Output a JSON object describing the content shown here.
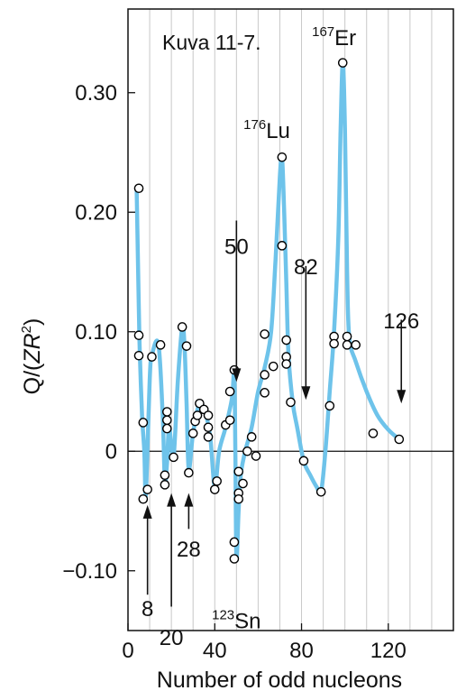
{
  "chart_data": {
    "type": "scatter",
    "title": "",
    "caption": "Kuva 11-7.",
    "xlabel": "Number of odd nucleons",
    "ylabel": "Q/(ZR²)",
    "ylabel_parts": {
      "pre": "Q/(",
      "main": "ZR",
      "sup": "2",
      "post": ")"
    },
    "xlim": [
      0,
      150
    ],
    "ylim": [
      -0.15,
      0.37
    ],
    "xticks": [
      0,
      40,
      80,
      120
    ],
    "xtick_labels": [
      "0",
      "40",
      "80",
      "120"
    ],
    "yticks": [
      -0.1,
      0,
      0.1,
      0.2,
      0.3
    ],
    "ytick_labels": [
      "−0.10",
      "0",
      "0.10",
      "0.20",
      "0.30"
    ],
    "grid": {
      "vertical_every": 10,
      "horizontal": false,
      "zero_line": true
    },
    "colors": {
      "curve": "#6ec3ea",
      "points": "#000000",
      "grid": "#c8c8c8"
    },
    "points": [
      {
        "x": 5,
        "y": 0.22
      },
      {
        "x": 5,
        "y": 0.097
      },
      {
        "x": 5,
        "y": 0.08
      },
      {
        "x": 7,
        "y": 0.024
      },
      {
        "x": 7,
        "y": -0.04
      },
      {
        "x": 9,
        "y": -0.032
      },
      {
        "x": 11,
        "y": 0.079
      },
      {
        "x": 15,
        "y": 0.089
      },
      {
        "x": 17,
        "y": -0.02
      },
      {
        "x": 17,
        "y": -0.028
      },
      {
        "x": 18,
        "y": 0.033
      },
      {
        "x": 18,
        "y": 0.026
      },
      {
        "x": 18,
        "y": 0.019
      },
      {
        "x": 21,
        "y": -0.005
      },
      {
        "x": 25,
        "y": 0.104
      },
      {
        "x": 27,
        "y": 0.088
      },
      {
        "x": 28,
        "y": -0.018
      },
      {
        "x": 30,
        "y": 0.015
      },
      {
        "x": 31,
        "y": 0.025
      },
      {
        "x": 32,
        "y": 0.03
      },
      {
        "x": 33,
        "y": 0.04
      },
      {
        "x": 35,
        "y": 0.035
      },
      {
        "x": 37,
        "y": 0.012
      },
      {
        "x": 37,
        "y": 0.02
      },
      {
        "x": 37,
        "y": 0.03
      },
      {
        "x": 40,
        "y": -0.032
      },
      {
        "x": 41,
        "y": -0.025
      },
      {
        "x": 45,
        "y": 0.022
      },
      {
        "x": 47,
        "y": 0.026
      },
      {
        "x": 47,
        "y": 0.05
      },
      {
        "x": 49,
        "y": 0.068
      },
      {
        "x": 49,
        "y": -0.076
      },
      {
        "x": 49,
        "y": -0.09
      },
      {
        "x": 51,
        "y": -0.035
      },
      {
        "x": 51,
        "y": -0.04
      },
      {
        "x": 51,
        "y": -0.017
      },
      {
        "x": 53,
        "y": -0.027
      },
      {
        "x": 55,
        "y": 0.0
      },
      {
        "x": 57,
        "y": 0.012
      },
      {
        "x": 59,
        "y": -0.004
      },
      {
        "x": 63,
        "y": 0.098
      },
      {
        "x": 63,
        "y": 0.064
      },
      {
        "x": 63,
        "y": 0.049
      },
      {
        "x": 67,
        "y": 0.071
      },
      {
        "x": 71,
        "y": 0.246
      },
      {
        "x": 71,
        "y": 0.172
      },
      {
        "x": 73,
        "y": 0.093
      },
      {
        "x": 73,
        "y": 0.079
      },
      {
        "x": 73,
        "y": 0.073
      },
      {
        "x": 75,
        "y": 0.041
      },
      {
        "x": 81,
        "y": -0.008
      },
      {
        "x": 89,
        "y": -0.034
      },
      {
        "x": 93,
        "y": 0.038
      },
      {
        "x": 95,
        "y": 0.096
      },
      {
        "x": 95,
        "y": 0.09
      },
      {
        "x": 99,
        "y": 0.325
      },
      {
        "x": 101,
        "y": 0.096
      },
      {
        "x": 101,
        "y": 0.089
      },
      {
        "x": 105,
        "y": 0.089
      },
      {
        "x": 113,
        "y": 0.015
      },
      {
        "x": 125,
        "y": 0.01
      }
    ],
    "curve": [
      [
        4,
        0.22
      ],
      [
        5,
        0.12
      ],
      [
        5.5,
        0.08
      ],
      [
        6.5,
        0.03
      ],
      [
        7.5,
        0.0
      ],
      [
        8,
        -0.035
      ],
      [
        8.5,
        -0.025
      ],
      [
        10,
        0.06
      ],
      [
        11,
        0.08
      ],
      [
        14,
        0.09
      ],
      [
        16,
        0.03
      ],
      [
        17,
        -0.025
      ],
      [
        18,
        -0.01
      ],
      [
        19,
        0.02
      ],
      [
        21,
        -0.005
      ],
      [
        23,
        0.06
      ],
      [
        25,
        0.104
      ],
      [
        26,
        0.09
      ],
      [
        27,
        0.04
      ],
      [
        28,
        -0.015
      ],
      [
        30,
        0.015
      ],
      [
        33,
        0.04
      ],
      [
        36,
        0.03
      ],
      [
        38,
        0.01
      ],
      [
        40,
        -0.03
      ],
      [
        42,
        0.0
      ],
      [
        45,
        0.02
      ],
      [
        48,
        0.045
      ],
      [
        49,
        0.068
      ],
      [
        49.5,
        0.0
      ],
      [
        50,
        -0.09
      ],
      [
        51,
        -0.05
      ],
      [
        52,
        -0.02
      ],
      [
        54,
        0.0
      ],
      [
        57,
        0.02
      ],
      [
        60,
        0.05
      ],
      [
        63,
        0.07
      ],
      [
        66,
        0.1
      ],
      [
        68,
        0.16
      ],
      [
        70,
        0.23
      ],
      [
        71,
        0.246
      ],
      [
        72,
        0.2
      ],
      [
        73,
        0.14
      ],
      [
        74,
        0.08
      ],
      [
        76,
        0.04
      ],
      [
        78,
        0.02
      ],
      [
        81,
        -0.008
      ],
      [
        84,
        -0.02
      ],
      [
        87,
        -0.03
      ],
      [
        89,
        -0.034
      ],
      [
        91,
        0.0
      ],
      [
        93,
        0.05
      ],
      [
        95,
        0.1
      ],
      [
        97,
        0.18
      ],
      [
        98,
        0.27
      ],
      [
        99,
        0.325
      ],
      [
        100,
        0.27
      ],
      [
        101,
        0.15
      ],
      [
        102,
        0.095
      ],
      [
        105,
        0.075
      ],
      [
        110,
        0.05
      ],
      [
        115,
        0.03
      ],
      [
        120,
        0.018
      ],
      [
        125,
        0.01
      ]
    ],
    "annotations": [
      {
        "text": "8",
        "x": 9,
        "arrow_from": -0.12,
        "arrow_to": -0.045,
        "label_y": -0.138,
        "label_dx": 0
      },
      {
        "text": "20",
        "x": 20,
        "arrow_from": -0.13,
        "arrow_to": -0.035,
        "label_y": -0.162,
        "label_dx": 0
      },
      {
        "text": "28",
        "x": 28,
        "arrow_from": -0.065,
        "arrow_to": -0.035,
        "label_y": -0.088,
        "label_dx": 0
      },
      {
        "text": "50",
        "x": 50,
        "arrow_from": 0.193,
        "arrow_to": 0.058,
        "label_y": 0.165,
        "label_dx": 0
      },
      {
        "text": "82",
        "x": 82,
        "arrow_from": 0.155,
        "arrow_to": 0.043,
        "label_y": 0.148,
        "label_dx": 0
      },
      {
        "text": "126",
        "x": 126,
        "arrow_from": 0.11,
        "arrow_to": 0.04,
        "label_y": 0.103,
        "label_dx": 0
      }
    ],
    "isotope_labels": [
      {
        "mass": "176",
        "symbol": "Lu",
        "x": 64,
        "y": 0.262
      },
      {
        "mass": "167",
        "symbol": "Er",
        "x": 95,
        "y": 0.34
      },
      {
        "mass": "123",
        "symbol": "Sn",
        "x": 50,
        "y": -0.148
      }
    ]
  }
}
